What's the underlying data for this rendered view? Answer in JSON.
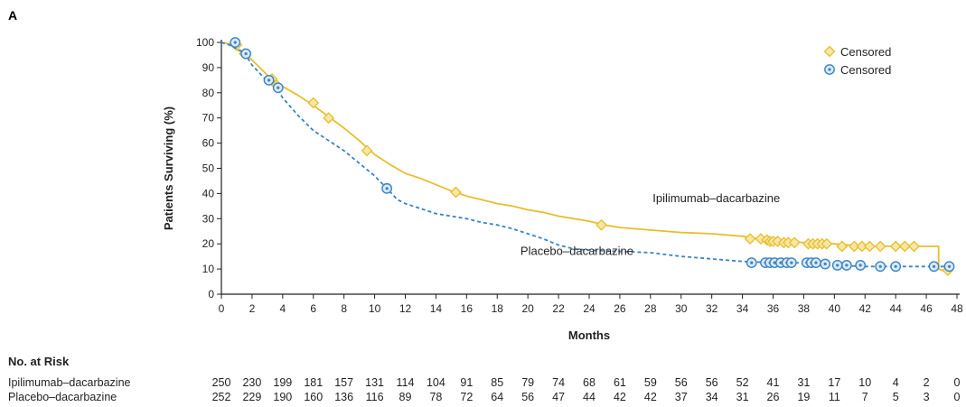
{
  "panel_label": "A",
  "chart_data": {
    "type": "line",
    "xlabel": "Months",
    "ylabel": "Patients Surviving (%)",
    "xlim": [
      0,
      48
    ],
    "ylim": [
      0,
      100
    ],
    "x_ticks": [
      0,
      2,
      4,
      6,
      8,
      10,
      12,
      14,
      16,
      18,
      20,
      22,
      24,
      26,
      28,
      30,
      32,
      34,
      36,
      38,
      40,
      42,
      44,
      46,
      48
    ],
    "y_ticks": [
      0,
      10,
      20,
      30,
      40,
      50,
      60,
      70,
      80,
      90,
      100
    ],
    "grid": false,
    "legend_position": "top-right",
    "legend": [
      {
        "label": "Censored",
        "marker": "diamond",
        "color": "#e8be2c"
      },
      {
        "label": "Censored",
        "marker": "circle-dot",
        "color": "#3a84c4"
      }
    ],
    "series": [
      {
        "name": "Ipilimumab–dacarbazine",
        "color": "#e8be2c",
        "style": "solid",
        "points": [
          [
            0,
            100
          ],
          [
            0.5,
            99.5
          ],
          [
            1,
            97
          ],
          [
            1.5,
            96
          ],
          [
            2,
            93
          ],
          [
            2.5,
            90
          ],
          [
            3,
            87
          ],
          [
            3.5,
            84.5
          ],
          [
            4,
            82.5
          ],
          [
            5,
            79
          ],
          [
            6,
            75
          ],
          [
            7,
            70.5
          ],
          [
            8,
            66
          ],
          [
            9,
            61
          ],
          [
            10,
            55.5
          ],
          [
            11,
            51.5
          ],
          [
            12,
            48
          ],
          [
            13,
            46
          ],
          [
            14,
            43.5
          ],
          [
            15,
            41
          ],
          [
            16,
            39
          ],
          [
            17,
            37.5
          ],
          [
            18,
            36
          ],
          [
            19,
            35
          ],
          [
            20,
            33.5
          ],
          [
            21,
            32.5
          ],
          [
            22,
            31
          ],
          [
            23,
            30
          ],
          [
            24,
            29
          ],
          [
            25,
            27.5
          ],
          [
            26,
            26.5
          ],
          [
            28,
            25.5
          ],
          [
            30,
            24.5
          ],
          [
            32,
            24
          ],
          [
            34,
            23
          ],
          [
            35,
            22
          ],
          [
            36,
            21.5
          ],
          [
            37,
            21
          ],
          [
            38,
            20.5
          ],
          [
            40,
            20
          ],
          [
            41,
            19.5
          ],
          [
            42,
            19
          ],
          [
            44,
            19
          ],
          [
            45,
            19
          ],
          [
            46.8,
            19
          ],
          [
            46.8,
            10
          ],
          [
            47.3,
            9
          ]
        ],
        "censored": [
          [
            1,
            99
          ],
          [
            1.5,
            95.5
          ],
          [
            3.3,
            85.5
          ],
          [
            3.6,
            83
          ],
          [
            6,
            76
          ],
          [
            7,
            70
          ],
          [
            9.5,
            57
          ],
          [
            15.3,
            40.5
          ],
          [
            24.8,
            27.5
          ],
          [
            34.5,
            22
          ],
          [
            35.2,
            22
          ],
          [
            35.6,
            21.5
          ],
          [
            35.8,
            21
          ],
          [
            36,
            21
          ],
          [
            36.3,
            21
          ],
          [
            36.7,
            20.5
          ],
          [
            37,
            20.5
          ],
          [
            37.4,
            20.5
          ],
          [
            38.3,
            20
          ],
          [
            38.6,
            20
          ],
          [
            38.9,
            20
          ],
          [
            39.2,
            20
          ],
          [
            39.5,
            20
          ],
          [
            40.5,
            19
          ],
          [
            41.3,
            19
          ],
          [
            41.8,
            19
          ],
          [
            42.3,
            19
          ],
          [
            43,
            19
          ],
          [
            44,
            19
          ],
          [
            44.6,
            19
          ],
          [
            45.2,
            19
          ],
          [
            47.4,
            9.5
          ]
        ]
      },
      {
        "name": "Placebo–dacarbazine",
        "color": "#3a84c4",
        "style": "dashed",
        "points": [
          [
            0,
            100
          ],
          [
            0.5,
            99
          ],
          [
            1,
            97.5
          ],
          [
            1.5,
            96
          ],
          [
            2,
            91
          ],
          [
            3,
            84.5
          ],
          [
            3.6,
            82
          ],
          [
            4,
            78
          ],
          [
            5,
            71
          ],
          [
            6,
            65
          ],
          [
            7,
            61
          ],
          [
            8,
            57
          ],
          [
            9,
            52
          ],
          [
            10,
            47
          ],
          [
            10.8,
            42
          ],
          [
            11.5,
            37.5
          ],
          [
            12,
            36
          ],
          [
            13,
            34
          ],
          [
            14,
            32
          ],
          [
            15,
            31
          ],
          [
            16,
            30
          ],
          [
            17,
            28.5
          ],
          [
            18,
            27.5
          ],
          [
            19,
            26
          ],
          [
            20,
            24
          ],
          [
            21,
            22
          ],
          [
            22,
            19.5
          ],
          [
            23,
            18
          ],
          [
            24,
            17.5
          ],
          [
            26,
            17
          ],
          [
            28,
            16.5
          ],
          [
            30,
            15
          ],
          [
            32,
            14
          ],
          [
            34,
            13
          ],
          [
            36,
            12.5
          ],
          [
            38,
            12.5
          ],
          [
            40,
            11.5
          ],
          [
            42,
            11
          ],
          [
            44,
            11
          ],
          [
            46,
            11
          ],
          [
            47.5,
            11
          ]
        ],
        "censored": [
          [
            0.9,
            100
          ],
          [
            1.6,
            95.5
          ],
          [
            3.1,
            85
          ],
          [
            3.7,
            82
          ],
          [
            10.8,
            42
          ],
          [
            34.6,
            12.5
          ],
          [
            35.5,
            12.5
          ],
          [
            35.8,
            12.5
          ],
          [
            36.1,
            12.5
          ],
          [
            36.5,
            12.5
          ],
          [
            36.9,
            12.5
          ],
          [
            37.2,
            12.5
          ],
          [
            38.2,
            12.5
          ],
          [
            38.5,
            12.5
          ],
          [
            38.8,
            12.5
          ],
          [
            39.4,
            12
          ],
          [
            40.2,
            11.5
          ],
          [
            40.8,
            11.5
          ],
          [
            41.7,
            11.5
          ],
          [
            43,
            11
          ],
          [
            44,
            11
          ],
          [
            46.5,
            11
          ],
          [
            47.5,
            11
          ]
        ]
      }
    ],
    "annotations": [
      {
        "text": "Ipilimumab–dacarbazine",
        "x": 32.3,
        "y": 38
      },
      {
        "text": "Placebo–dacarbazine",
        "x": 23.2,
        "y": 17
      }
    ]
  },
  "risk_table": {
    "title": "No. at Risk",
    "times": [
      0,
      2,
      4,
      6,
      8,
      10,
      12,
      14,
      16,
      18,
      20,
      22,
      24,
      26,
      28,
      30,
      32,
      34,
      36,
      38,
      40,
      42,
      44,
      46,
      48
    ],
    "rows": [
      {
        "label": "Ipilimumab–dacarbazine",
        "values": [
          "250",
          "230",
          "199",
          "181",
          "157",
          "131",
          "114",
          "104",
          "91",
          "85",
          "79",
          "74",
          "68",
          "61",
          "59",
          "56",
          "56",
          "52",
          "41",
          "31",
          "17",
          "10",
          "4",
          "2",
          "0"
        ]
      },
      {
        "label": "Placebo–dacarbazine",
        "values": [
          "252",
          "229",
          "190",
          "160",
          "136",
          "116",
          "89",
          "78",
          "72",
          "64",
          "56",
          "47",
          "44",
          "42",
          "42",
          "37",
          "34",
          "31",
          "26",
          "19",
          "11",
          "7",
          "5",
          "3",
          "0"
        ]
      }
    ]
  }
}
